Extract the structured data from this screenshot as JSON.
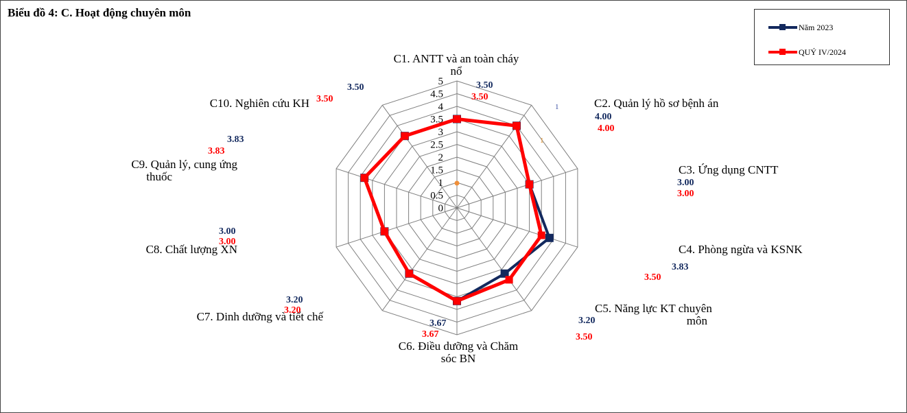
{
  "chart_title": "Biểu đồ 4: C. Hoạt động chuyên môn",
  "colors": {
    "series1": "#13295e",
    "series2": "#ff0000",
    "grid": "#7f7f7f"
  },
  "chart_data": {
    "type": "radar",
    "title": "Biểu đồ 4: C. Hoạt động chuyên môn",
    "rlim": [
      0,
      5
    ],
    "tick_labels": [
      "0",
      "0.5",
      "1",
      "1.5",
      "2",
      "2.5",
      "3",
      "3.5",
      "4",
      "4.5",
      "5"
    ],
    "categories": [
      [
        "C1. ANTT và an toàn cháy",
        "nổ"
      ],
      [
        "C2. Quản lý hồ sơ bệnh án"
      ],
      [
        "C3. Ứng dụng CNTT"
      ],
      [
        "C4. Phòng ngừa và KSNK"
      ],
      [
        "C5. Năng lực KT chuyên",
        "môn"
      ],
      [
        "C6. Điều dưỡng và Chăm",
        "sóc BN"
      ],
      [
        "C7. Dinh dưỡng và tiết chế"
      ],
      [
        "C8. Chất lượng XN"
      ],
      [
        "C9. Quản lý, cung ứng",
        "thuốc"
      ],
      [
        "C10. Nghiên cứu KH"
      ]
    ],
    "series": [
      {
        "name": "Năm 2023",
        "values": [
          3.5,
          4.0,
          3.0,
          3.83,
          3.2,
          3.67,
          3.2,
          3.0,
          3.83,
          3.5
        ],
        "labels": [
          "3.50",
          "4.00",
          "3.00",
          "3.83",
          "3.20",
          "3.67",
          "3.20",
          "3.00",
          "3.83",
          "3.50"
        ]
      },
      {
        "name": "QUÝ IV/2024",
        "values": [
          3.5,
          4.0,
          3.0,
          3.5,
          3.5,
          3.67,
          3.2,
          3.0,
          3.83,
          3.5
        ],
        "labels": [
          "3.50",
          "4.00",
          "3.00",
          "3.50",
          "3.50",
          "3.67",
          "3.20",
          "3.00",
          "3.83",
          "3.50"
        ]
      }
    ],
    "annotations": [
      "1",
      "1"
    ],
    "legend_position": "top-right",
    "grid": true
  }
}
